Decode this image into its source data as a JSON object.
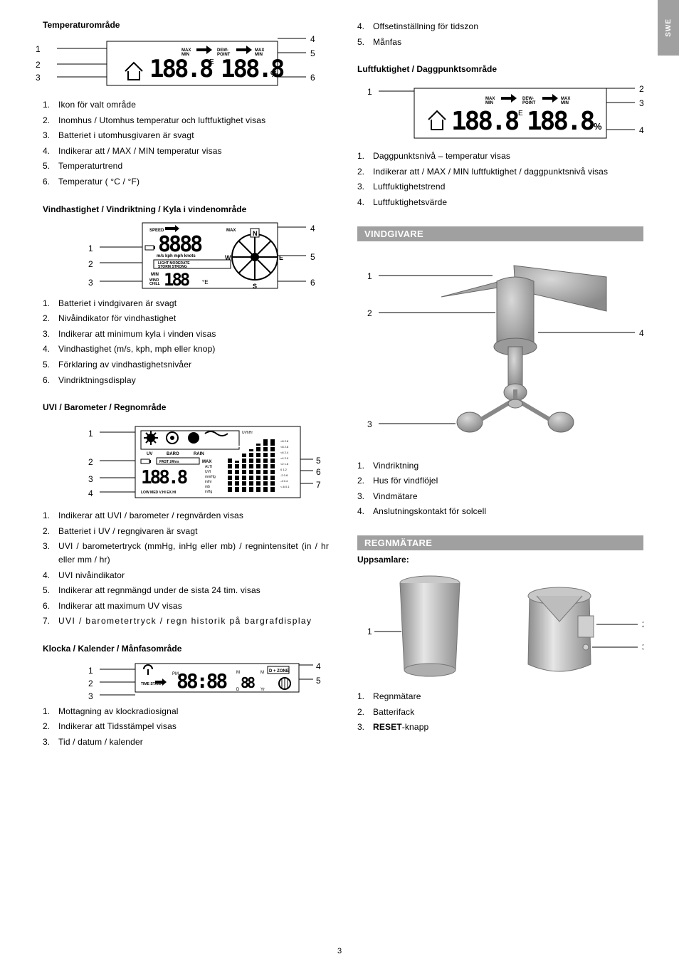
{
  "sidetab": "SWE",
  "page_number": "3",
  "left": {
    "temp": {
      "title": "Temperaturområde",
      "svg_labels": [
        "MAX",
        "MIN",
        "DEW-",
        "POINT",
        "MAX",
        "MIN"
      ],
      "left_callouts": [
        "1",
        "2",
        "3"
      ],
      "right_callouts": [
        "4",
        "5",
        "6"
      ],
      "list": [
        "Ikon för valt område",
        "Inomhus / Utomhus temperatur och luftfuktighet visas",
        "Batteriet i utomhusgivaren är svagt",
        "Indikerar att / MAX / MIN temperatur visas",
        "Temperaturtrend",
        "Temperatur ( °C / °F)"
      ]
    },
    "wind": {
      "title": "Vindhastighet / Vindriktning / Kyla i vindenområde",
      "svg_labels": [
        "SPEED",
        "MAX",
        "m/s kph mph knots",
        "LIGHT MODERATE",
        "STORM STRONG",
        "MIN",
        "WIND",
        "CHILL",
        "N",
        "E",
        "S",
        "W"
      ],
      "left_callouts": [
        "1",
        "2",
        "3"
      ],
      "right_callouts": [
        "4",
        "5",
        "6"
      ],
      "list": [
        "Batteriet i vindgivaren är svagt",
        "Nivåindikator för vindhastighet",
        "Indikerar att minimum kyla i vinden visas",
        "Vindhastighet (m/s, kph, mph eller knop)",
        "Förklaring av vindhastighetsnivåer",
        "Vindriktningsdisplay"
      ]
    },
    "uvi": {
      "title": "UVI / Barometer / Regnområde",
      "svg_labels": [
        "UV",
        "BARO",
        "RAIN",
        "PAST 24hrs",
        "MAX",
        "LOW MED V.HI EX.HI",
        "UVI\\Hr",
        "ALTI",
        "UVI",
        "mmHg",
        "in/hr",
        "mb",
        "inHg"
      ],
      "left_callouts": [
        "1",
        "2",
        "3",
        "4"
      ],
      "right_callouts": [
        "5",
        "6",
        "7"
      ],
      "list": [
        "Indikerar att UVI / barometer / regnvärden visas",
        "Batteriet i UV / regngivaren är svagt",
        "UVI / barometertryck (mmHg, inHg eller mb) / regnintensitet (in / hr eller mm / hr)",
        "UVI nivåindikator",
        "Indikerar att regnmängd under de sista 24 tim. visas",
        "Indikerar att maximum UV visas",
        "UVI / barometertryck / regn historik på bargrafdisplay"
      ]
    },
    "clock": {
      "title": "Klocka / Kalender / Månfasområde",
      "svg_labels": [
        "TIME STAMP",
        "ZONE",
        "PM",
        "M",
        "D",
        "M",
        "Yr"
      ],
      "left_callouts": [
        "1",
        "2",
        "3"
      ],
      "right_callouts": [
        "4",
        "5"
      ],
      "list": [
        "Mottagning av klockradiosignal",
        "Indikerar att Tidsstämpel visas",
        "Tid / datum / kalender"
      ]
    }
  },
  "right": {
    "clock_cont": [
      "Offsetinställning för tidszon",
      "Månfas"
    ],
    "clock_cont_start": 4,
    "humidity": {
      "title": "Luftfuktighet / Daggpunktsområde",
      "svg_labels": [
        "MAX",
        "MIN",
        "DEW-",
        "POINT",
        "MAX",
        "MIN"
      ],
      "left_callouts": [
        "1"
      ],
      "right_callouts": [
        "2",
        "3",
        "4"
      ],
      "list": [
        "Daggpunktsnivå – temperatur visas",
        "Indikerar att / MAX / MIN luftfuktighet / daggpunktsnivå visas",
        "Luftfuktighetstrend",
        "Luftfuktighetsvärde"
      ]
    },
    "windsensor": {
      "bar": "VINDGIVARE",
      "left_callouts": [
        "1",
        "2",
        "3"
      ],
      "right_callouts": [
        "4"
      ],
      "list": [
        "Vindriktning",
        "Hus för vindflöjel",
        "Vindmätare",
        "Anslutningskontakt för solcell"
      ]
    },
    "rain": {
      "bar": "REGNMÄTARE",
      "subtitle": "Uppsamlare:",
      "left_callouts": [
        "1"
      ],
      "right_callouts": [
        "2",
        "3"
      ],
      "list": [
        "Regnmätare",
        "Batterifack",
        "RESET-knapp"
      ],
      "reset_bold": "RESET",
      "reset_suffix": "-knapp"
    }
  }
}
